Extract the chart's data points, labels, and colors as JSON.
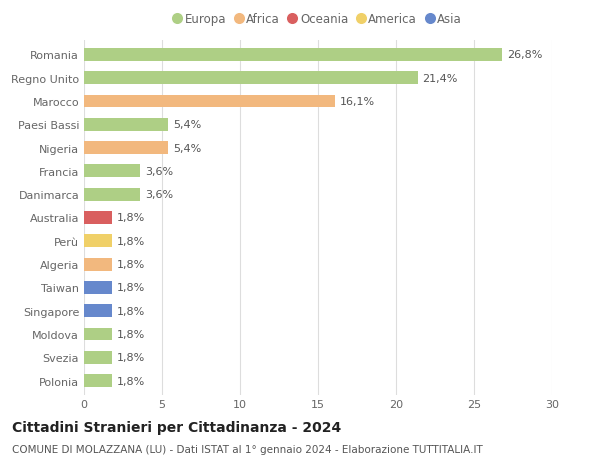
{
  "categories": [
    "Romania",
    "Regno Unito",
    "Marocco",
    "Paesi Bassi",
    "Nigeria",
    "Francia",
    "Danimarca",
    "Australia",
    "Perù",
    "Algeria",
    "Taiwan",
    "Singapore",
    "Moldova",
    "Svezia",
    "Polonia"
  ],
  "values": [
    26.8,
    21.4,
    16.1,
    5.4,
    5.4,
    3.6,
    3.6,
    1.8,
    1.8,
    1.8,
    1.8,
    1.8,
    1.8,
    1.8,
    1.8
  ],
  "labels": [
    "26,8%",
    "21,4%",
    "16,1%",
    "5,4%",
    "5,4%",
    "3,6%",
    "3,6%",
    "1,8%",
    "1,8%",
    "1,8%",
    "1,8%",
    "1,8%",
    "1,8%",
    "1,8%",
    "1,8%"
  ],
  "colors": [
    "#aecf85",
    "#aecf85",
    "#f2b87e",
    "#aecf85",
    "#f2b87e",
    "#aecf85",
    "#aecf85",
    "#d95f5f",
    "#f0d068",
    "#f2b87e",
    "#6688cc",
    "#6688cc",
    "#aecf85",
    "#aecf85",
    "#aecf85"
  ],
  "legend_labels": [
    "Europa",
    "Africa",
    "Oceania",
    "America",
    "Asia"
  ],
  "legend_colors": [
    "#aecf85",
    "#f2b87e",
    "#d95f5f",
    "#f0d068",
    "#6688cc"
  ],
  "title": "Cittadini Stranieri per Cittadinanza - 2024",
  "subtitle": "COMUNE DI MOLAZZANA (LU) - Dati ISTAT al 1° gennaio 2024 - Elaborazione TUTTITALIA.IT",
  "xlim": [
    0,
    30
  ],
  "xticks": [
    0,
    5,
    10,
    15,
    20,
    25,
    30
  ],
  "background_color": "#ffffff",
  "grid_color": "#dddddd",
  "bar_height": 0.55,
  "title_fontsize": 10,
  "subtitle_fontsize": 7.5,
  "label_fontsize": 8,
  "tick_fontsize": 8,
  "legend_fontsize": 8.5,
  "label_color": "#555555",
  "tick_color": "#666666"
}
